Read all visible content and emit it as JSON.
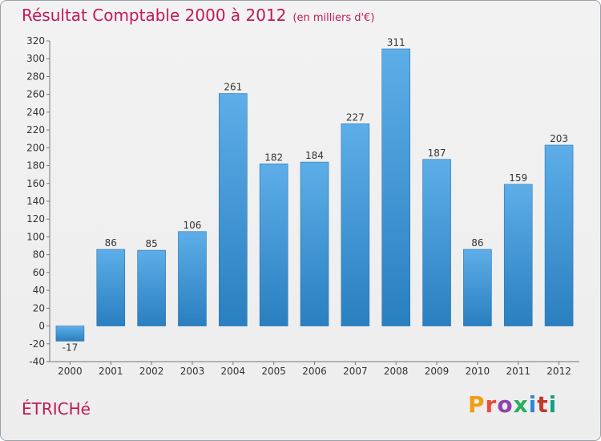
{
  "chart_data": {
    "type": "bar",
    "title": "Résultat Comptable 2000 à 2012",
    "subtitle": "(en milliers d'€)",
    "categories": [
      "2000",
      "2001",
      "2002",
      "2003",
      "2004",
      "2005",
      "2006",
      "2007",
      "2008",
      "2009",
      "2010",
      "2011",
      "2012"
    ],
    "values": [
      -17,
      86,
      85,
      106,
      261,
      182,
      184,
      227,
      311,
      187,
      86,
      159,
      203
    ],
    "data_labels": [
      "-17",
      "86",
      "85",
      "106",
      "261",
      "182",
      "184",
      "227",
      "311",
      "187",
      "86",
      "159",
      "203"
    ],
    "ylim": [
      -40,
      320
    ],
    "yticks": [
      -40,
      -20,
      0,
      20,
      40,
      60,
      80,
      100,
      120,
      140,
      160,
      180,
      200,
      220,
      240,
      260,
      280,
      300,
      320
    ],
    "grid": false,
    "bar_color_top": "#5daee8",
    "bar_color_bottom": "#2a7fc0",
    "xlabel": "",
    "ylabel": ""
  },
  "place_name": "ÉTRICHé",
  "logo_text": "Proxiti"
}
